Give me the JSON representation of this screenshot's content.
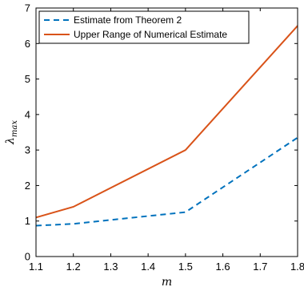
{
  "chart_data": {
    "type": "line",
    "title": "",
    "xlabel": "m",
    "ylabel_base": "λ",
    "ylabel_sub": "max",
    "xlim": [
      1.1,
      1.8
    ],
    "ylim": [
      0,
      7
    ],
    "xticks": [
      "1.1",
      "1.2",
      "1.3",
      "1.4",
      "1.5",
      "1.6",
      "1.7",
      "1.8"
    ],
    "yticks": [
      "0",
      "1",
      "2",
      "3",
      "4",
      "5",
      "6",
      "7"
    ],
    "grid": false,
    "legend_position": "top-left",
    "series": [
      {
        "name": "Estimate from Theorem 2",
        "color": "#0072BD",
        "style": "dashed",
        "x": [
          1.1,
          1.2,
          1.5,
          1.8
        ],
        "y": [
          0.87,
          0.92,
          1.25,
          3.35
        ]
      },
      {
        "name": "Upper Range of Numerical Estimate",
        "color": "#D95319",
        "style": "solid",
        "x": [
          1.1,
          1.2,
          1.5,
          1.8
        ],
        "y": [
          1.1,
          1.4,
          3.0,
          6.5
        ]
      }
    ]
  }
}
